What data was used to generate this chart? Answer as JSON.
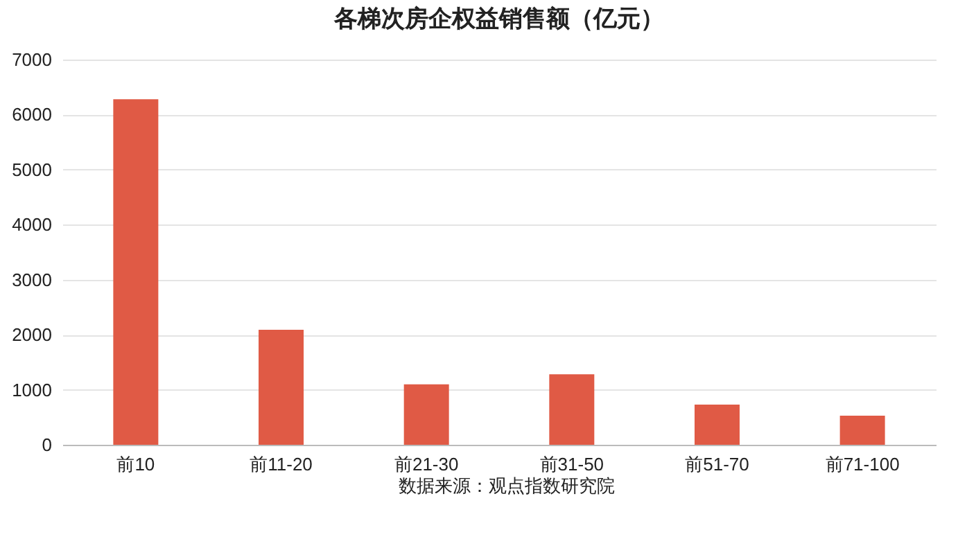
{
  "chart_data": {
    "type": "bar",
    "title": "各梯次房企权益销售额（亿元）",
    "categories": [
      "前10",
      "前11-20",
      "前21-30",
      "前31-50",
      "前51-70",
      "前71-100"
    ],
    "values": [
      6280,
      2090,
      1100,
      1280,
      730,
      530
    ],
    "color": "#e05a45",
    "ylim": [
      0,
      7000
    ],
    "yticks": [
      0,
      1000,
      2000,
      3000,
      4000,
      5000,
      6000,
      7000
    ],
    "grid": "y",
    "annotations": [
      "数据来源：观点指数研究院"
    ]
  }
}
